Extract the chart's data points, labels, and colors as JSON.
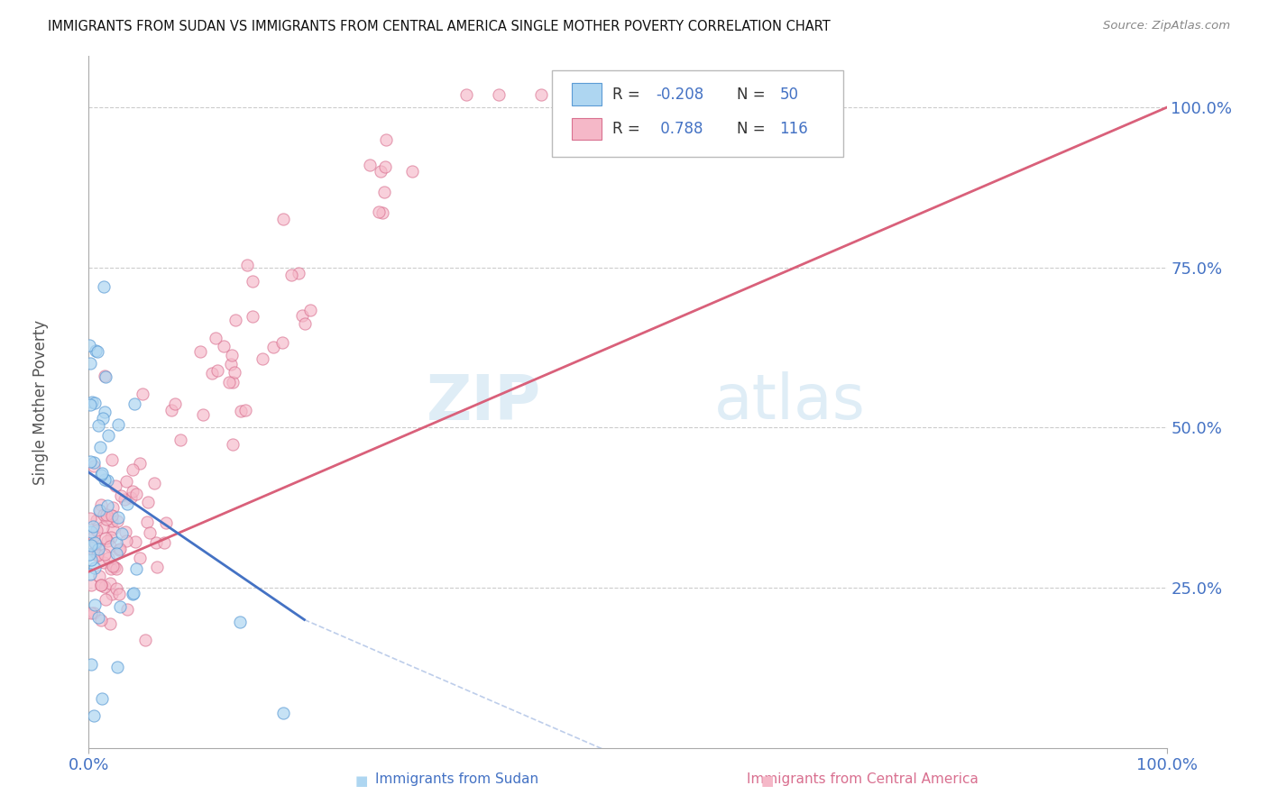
{
  "title": "IMMIGRANTS FROM SUDAN VS IMMIGRANTS FROM CENTRAL AMERICA SINGLE MOTHER POVERTY CORRELATION CHART",
  "source": "Source: ZipAtlas.com",
  "ylabel": "Single Mother Poverty",
  "y_tick_labels": [
    "25.0%",
    "50.0%",
    "75.0%",
    "100.0%"
  ],
  "y_tick_values": [
    0.25,
    0.5,
    0.75,
    1.0
  ],
  "x_tick_labels": [
    "0.0%",
    "100.0%"
  ],
  "x_tick_values": [
    0.0,
    1.0
  ],
  "legend_r1": "-0.208",
  "legend_n1": "50",
  "legend_r2": "0.788",
  "legend_n2": "116",
  "color_sudan_fill": "#aed6f1",
  "color_sudan_edge": "#5b9bd5",
  "color_ca_fill": "#f5b8c8",
  "color_ca_edge": "#d97090",
  "color_sudan_line": "#4472c4",
  "color_ca_line": "#d9607a",
  "color_axis_blue": "#4472c4",
  "color_r_blue": "#4472c4",
  "background": "#ffffff",
  "label_sudan": "Immigrants from Sudan",
  "label_ca": "Immigrants from Central America",
  "watermark": "ZIPAtlas",
  "watermark_color": "#d0e8f5"
}
